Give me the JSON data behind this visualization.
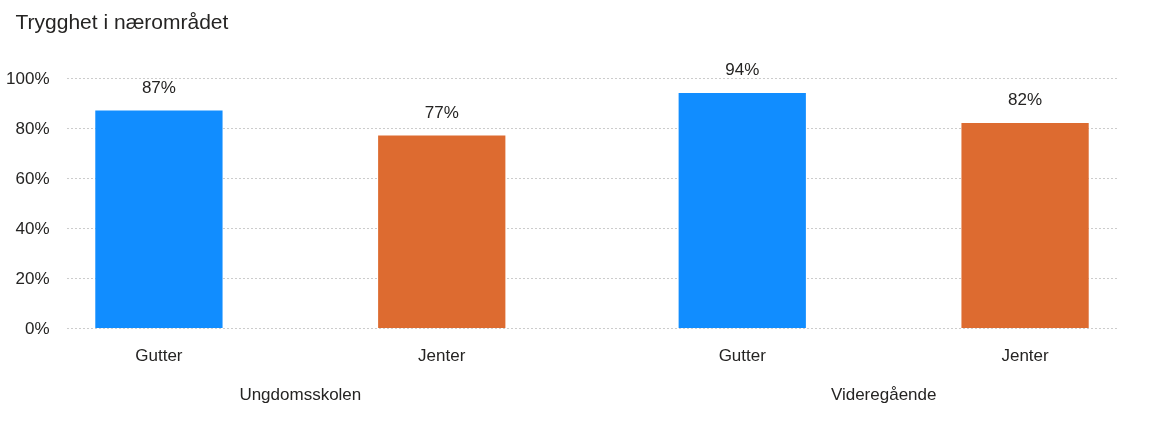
{
  "chart_data": {
    "type": "bar",
    "title": "Trygghet i nærområdet",
    "categories": [
      "Ungdomsskolen",
      "Videregående"
    ],
    "series": [
      {
        "name": "Gutter",
        "color": "#118dff",
        "values": [
          87,
          94
        ],
        "value_labels": [
          "87%",
          "94%"
        ]
      },
      {
        "name": "Jenter",
        "color": "#dd6b30",
        "values": [
          77,
          82
        ],
        "value_labels": [
          "77%",
          "82%"
        ]
      }
    ],
    "ylim": [
      0,
      100
    ],
    "yticks": [
      {
        "value": 0,
        "label": "0%"
      },
      {
        "value": 20,
        "label": "20%"
      },
      {
        "value": 40,
        "label": "40%"
      },
      {
        "value": 60,
        "label": "60%"
      },
      {
        "value": 80,
        "label": "80%"
      },
      {
        "value": 100,
        "label": "100%"
      }
    ],
    "grid": "y",
    "legend": false
  }
}
